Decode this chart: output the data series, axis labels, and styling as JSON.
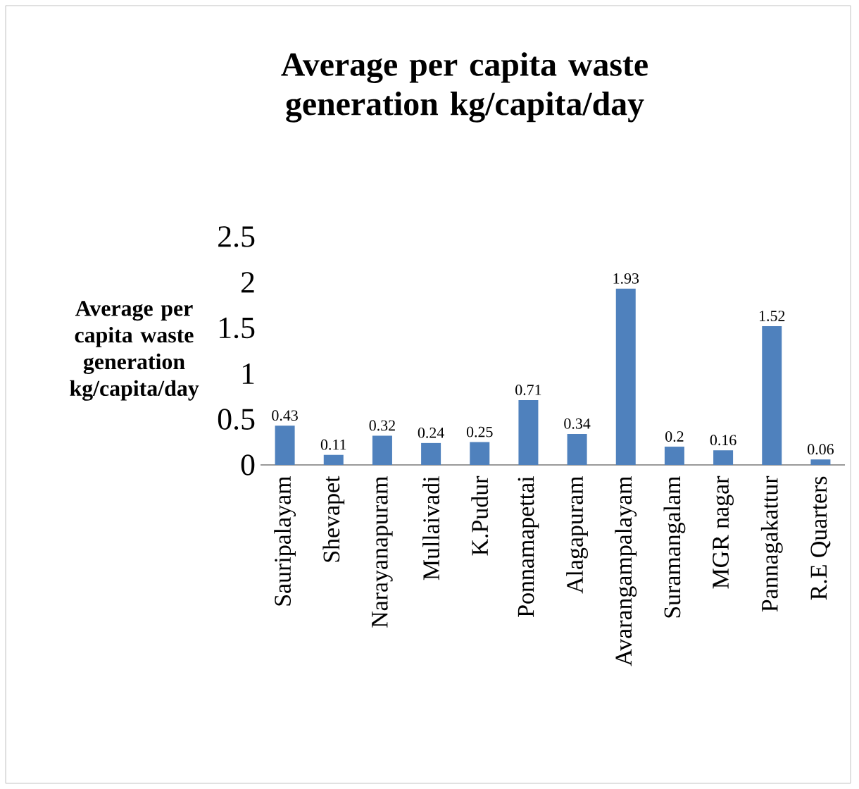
{
  "chart_data": {
    "type": "bar",
    "title": "Average per capita waste generation kg/capita/day",
    "ylabel": "Average per capita waste generation kg/capita/day",
    "categories": [
      "Sauripalayam",
      "Shevapet",
      "Narayanapuram",
      "Mullaivadi",
      "K.Pudur",
      "Ponnamapettai",
      "Alagapuram",
      "Avarangampalayam",
      "Suramangalam",
      "MGR nagar",
      "Pannagakattur",
      "R.E Quarters"
    ],
    "values": [
      0.43,
      0.11,
      0.32,
      0.24,
      0.25,
      0.71,
      0.34,
      1.93,
      0.2,
      0.16,
      1.52,
      0.06
    ],
    "color": "#4f81bd",
    "ylim": [
      0,
      2.5
    ],
    "yticks": [
      0,
      0.5,
      1,
      1.5,
      2,
      2.5
    ],
    "data_labels": true
  }
}
